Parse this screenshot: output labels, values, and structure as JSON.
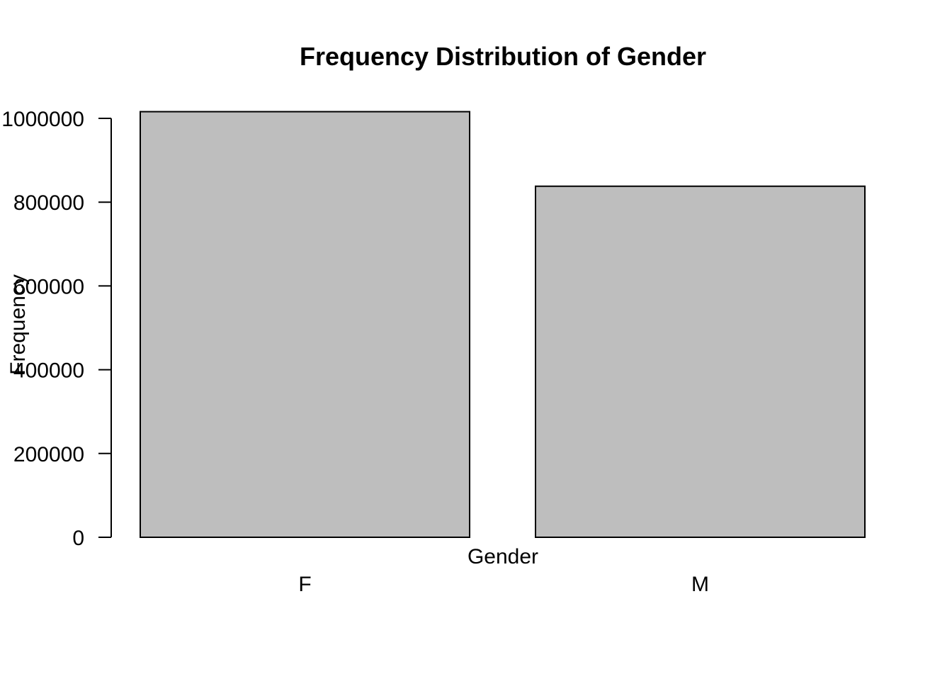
{
  "chart_data": {
    "type": "bar",
    "title": "Frequency Distribution of Gender",
    "xlabel": "Gender",
    "ylabel": "Frequency",
    "categories": [
      "F",
      "M"
    ],
    "values": [
      1016000,
      838000
    ],
    "ylim": [
      0,
      1000000
    ],
    "y_ticks": [
      0,
      200000,
      400000,
      600000,
      800000,
      1000000
    ],
    "y_tick_labels": [
      "0",
      "200000",
      "400000",
      "600000",
      "800000",
      "1000000"
    ],
    "grid": false,
    "legend": "none",
    "colors": {
      "bar_fill": "#bebebe",
      "bar_stroke": "#000000",
      "axis": "#000000",
      "background": "#ffffff"
    }
  }
}
